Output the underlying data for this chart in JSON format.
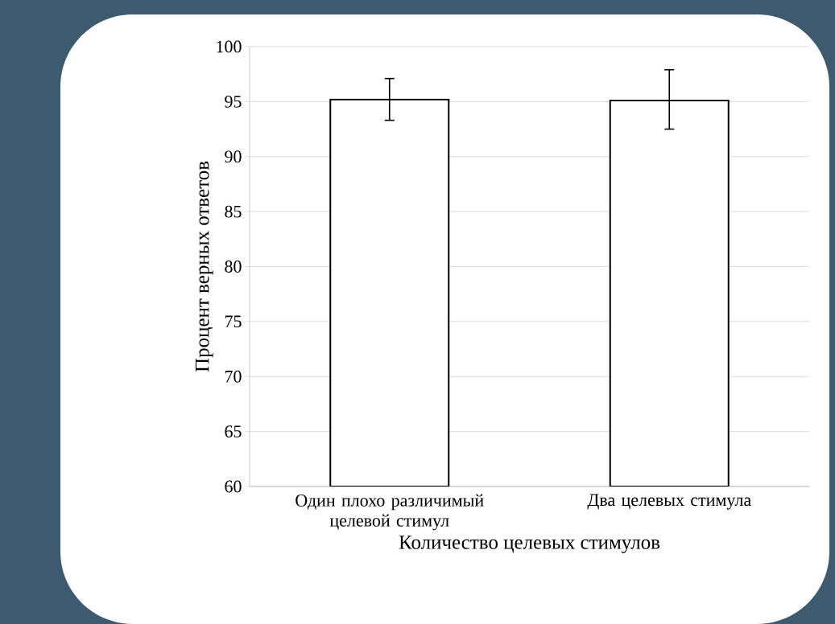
{
  "chart_data": {
    "type": "bar",
    "xlabel": "Количество целевых стимулов",
    "ylabel": "Процент верных ответов",
    "categories": [
      "Один плохо различимый целевой стимул",
      "Два целевых стимула"
    ],
    "values": [
      95.2,
      95.1
    ],
    "errors": [
      [
        93.3,
        97.1
      ],
      [
        92.5,
        97.9
      ]
    ],
    "color": "#ffffff",
    "ylim": [
      60,
      100
    ],
    "yticks": [
      60,
      65,
      70,
      75,
      80,
      85,
      90,
      95,
      100
    ],
    "grid": "y"
  }
}
